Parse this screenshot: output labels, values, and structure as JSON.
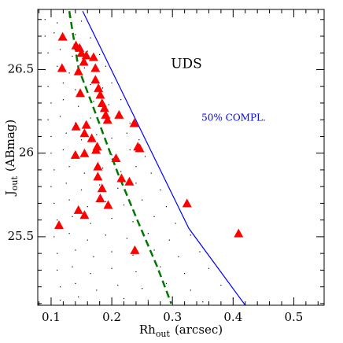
{
  "chart_data": {
    "type": "scatter",
    "annotation": "UDS",
    "completeness_label": "50% COMPL.",
    "xlabel": {
      "main": "Rh",
      "sub": "out",
      "rest": "(arcsec)"
    },
    "ylabel": {
      "main": "J",
      "sub": "out",
      "rest": "(ABmag)"
    },
    "xlim": [
      0.078,
      0.55
    ],
    "ylim": [
      25.09,
      26.86
    ],
    "xticks": [
      0.1,
      0.2,
      0.3,
      0.4,
      0.5
    ],
    "yticks": [
      25.5,
      26,
      26.5
    ],
    "xminor": [
      0.08,
      0.12,
      0.14,
      0.16,
      0.18,
      0.22,
      0.24,
      0.26,
      0.28,
      0.32,
      0.34,
      0.36,
      0.38,
      0.42,
      0.44,
      0.46,
      0.48,
      0.52,
      0.54
    ],
    "yminor": [
      25.1,
      25.2,
      25.3,
      25.4,
      25.6,
      25.7,
      25.8,
      25.9,
      26.1,
      26.2,
      26.3,
      26.4,
      26.6,
      26.7,
      26.8
    ],
    "field": {
      "color": "#000000",
      "x": [
        0.09,
        0.11,
        0.13,
        0.15,
        0.09,
        0.105,
        0.125,
        0.14,
        0.165,
        0.095,
        0.115,
        0.135,
        0.16,
        0.18,
        0.09,
        0.11,
        0.13,
        0.155,
        0.175,
        0.19,
        0.095,
        0.12,
        0.14,
        0.165,
        0.185,
        0.2,
        0.1,
        0.12,
        0.145,
        0.17,
        0.195,
        0.215,
        0.095,
        0.115,
        0.14,
        0.165,
        0.19,
        0.215,
        0.23,
        0.1,
        0.125,
        0.15,
        0.175,
        0.2,
        0.225,
        0.245,
        0.1,
        0.12,
        0.145,
        0.17,
        0.2,
        0.23,
        0.255,
        0.105,
        0.13,
        0.155,
        0.185,
        0.215,
        0.24,
        0.265,
        0.1,
        0.125,
        0.15,
        0.18,
        0.21,
        0.24,
        0.28,
        0.105,
        0.13,
        0.16,
        0.19,
        0.22,
        0.25,
        0.29,
        0.11,
        0.135,
        0.165,
        0.2,
        0.235,
        0.27,
        0.305,
        0.105,
        0.13,
        0.16,
        0.19,
        0.225,
        0.26,
        0.295,
        0.33,
        0.11,
        0.14,
        0.17,
        0.2,
        0.235,
        0.27,
        0.31,
        0.345,
        0.11,
        0.135,
        0.165,
        0.2,
        0.24,
        0.28,
        0.32,
        0.36,
        0.115,
        0.14,
        0.175,
        0.21,
        0.25,
        0.29,
        0.33,
        0.38,
        0.115,
        0.145,
        0.18,
        0.22,
        0.26,
        0.3,
        0.35,
        0.4
      ],
      "y": [
        26.8,
        26.78,
        26.82,
        26.79,
        26.7,
        26.72,
        26.68,
        26.71,
        26.69,
        26.6,
        26.62,
        26.58,
        26.61,
        26.59,
        26.5,
        26.52,
        26.48,
        26.51,
        26.49,
        26.52,
        26.4,
        26.42,
        26.38,
        26.41,
        26.39,
        26.42,
        26.3,
        26.32,
        26.28,
        26.31,
        26.29,
        26.32,
        26.2,
        26.22,
        26.18,
        26.21,
        26.19,
        26.22,
        26.18,
        26.1,
        26.12,
        26.08,
        26.11,
        26.09,
        26.12,
        26.08,
        26.0,
        26.02,
        25.98,
        26.01,
        25.99,
        26.02,
        25.98,
        25.9,
        25.92,
        25.88,
        25.91,
        25.89,
        25.92,
        25.88,
        25.8,
        25.82,
        25.78,
        25.81,
        25.79,
        25.82,
        25.78,
        25.7,
        25.72,
        25.68,
        25.71,
        25.69,
        25.72,
        25.68,
        25.6,
        25.62,
        25.58,
        25.61,
        25.59,
        25.62,
        25.58,
        25.5,
        25.52,
        25.48,
        25.51,
        25.49,
        25.52,
        25.48,
        25.51,
        25.4,
        25.42,
        25.38,
        25.41,
        25.39,
        25.42,
        25.38,
        25.41,
        25.3,
        25.32,
        25.28,
        25.31,
        25.29,
        25.32,
        25.28,
        25.31,
        25.2,
        25.22,
        25.18,
        25.21,
        25.19,
        25.22,
        25.18,
        25.21,
        25.12,
        25.14,
        25.11,
        25.13,
        25.12,
        25.14,
        25.11,
        25.13
      ]
    },
    "sources": {
      "color": "#ff0000",
      "x": [
        0.119,
        0.118,
        0.141,
        0.147,
        0.15,
        0.158,
        0.17,
        0.154,
        0.145,
        0.173,
        0.173,
        0.178,
        0.148,
        0.181,
        0.184,
        0.188,
        0.19,
        0.193,
        0.212,
        0.237,
        0.158,
        0.141,
        0.155,
        0.167,
        0.176,
        0.174,
        0.243,
        0.246,
        0.155,
        0.14,
        0.207,
        0.177,
        0.177,
        0.216,
        0.229,
        0.184,
        0.181,
        0.194,
        0.324,
        0.145,
        0.155,
        0.113,
        0.409,
        0.238
      ],
      "y": [
        26.697,
        26.51,
        26.645,
        26.63,
        26.6,
        26.585,
        26.575,
        26.547,
        26.49,
        26.51,
        26.44,
        26.39,
        26.36,
        26.35,
        26.3,
        26.27,
        26.23,
        26.2,
        26.23,
        26.18,
        26.17,
        26.16,
        26.12,
        26.09,
        26.04,
        26.02,
        26.04,
        26.03,
        26.0,
        25.99,
        25.97,
        25.92,
        25.86,
        25.85,
        25.83,
        25.79,
        25.73,
        25.69,
        25.7,
        25.66,
        25.63,
        25.57,
        25.52,
        25.42
      ]
    },
    "completeness_line": {
      "color": "#0000ff",
      "x": [
        0.152,
        0.327,
        0.42
      ],
      "y": [
        26.85,
        25.55,
        25.09
      ]
    },
    "median_line": {
      "color": "#007700",
      "x": [
        0.13,
        0.145,
        0.171,
        0.21,
        0.242,
        0.275,
        0.298
      ],
      "y": [
        26.85,
        26.51,
        26.26,
        25.88,
        25.6,
        25.32,
        25.1
      ]
    }
  }
}
